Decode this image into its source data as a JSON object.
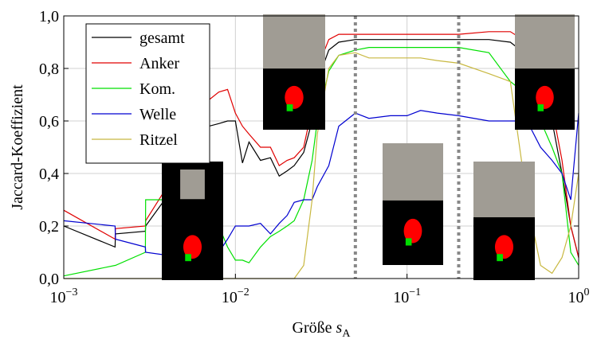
{
  "chart_data": {
    "type": "line",
    "x_label": {
      "text": "Größe ",
      "symbol": "s",
      "subscript": "A"
    },
    "y_label": "Jaccard-Koeffizient",
    "log_x": true,
    "grid": true,
    "legend_position": "upper left",
    "xlim": [
      0.001,
      1
    ],
    "ylim": [
      0,
      1
    ],
    "xticks": [
      {
        "value": 0.001,
        "label": "10",
        "exponent": "−3"
      },
      {
        "value": 0.01,
        "label": "10",
        "exponent": "−2"
      },
      {
        "value": 0.1,
        "label": "10",
        "exponent": "−1"
      },
      {
        "value": 1,
        "label": "10",
        "exponent": "0"
      }
    ],
    "yticks": [
      {
        "value": 0,
        "label": "0,0"
      },
      {
        "value": 0.2,
        "label": "0,2"
      },
      {
        "value": 0.4,
        "label": "0,4"
      },
      {
        "value": 0.6,
        "label": "0,6"
      },
      {
        "value": 0.8,
        "label": "0,8"
      },
      {
        "value": 1,
        "label": "1,0"
      }
    ],
    "vlines": [
      0.05,
      0.2
    ],
    "x": [
      0.001,
      0.00199,
      0.002,
      0.00299,
      0.003,
      0.005,
      0.007,
      0.008,
      0.009,
      0.01,
      0.011,
      0.012,
      0.014,
      0.016,
      0.018,
      0.02,
      0.022,
      0.025,
      0.028,
      0.03,
      0.035,
      0.04,
      0.05,
      0.06,
      0.08,
      0.1,
      0.12,
      0.15,
      0.2,
      0.3,
      0.4,
      0.5,
      0.6,
      0.7,
      0.8,
      0.9,
      1.0
    ],
    "series": [
      {
        "name": "gesamt",
        "color": "#000000",
        "values": [
          0.2,
          0.12,
          0.17,
          0.18,
          0.2,
          0.4,
          0.58,
          0.59,
          0.6,
          0.6,
          0.44,
          0.52,
          0.45,
          0.46,
          0.39,
          0.41,
          0.43,
          0.48,
          0.6,
          0.75,
          0.87,
          0.9,
          0.91,
          0.91,
          0.91,
          0.91,
          0.91,
          0.91,
          0.91,
          0.91,
          0.9,
          0.85,
          0.75,
          0.6,
          0.4,
          0.2,
          0.08
        ]
      },
      {
        "name": "Anker",
        "color": "#e00000",
        "values": [
          0.26,
          0.15,
          0.19,
          0.2,
          0.22,
          0.45,
          0.68,
          0.71,
          0.72,
          0.63,
          0.58,
          0.55,
          0.5,
          0.5,
          0.43,
          0.45,
          0.46,
          0.5,
          0.65,
          0.8,
          0.91,
          0.93,
          0.93,
          0.93,
          0.93,
          0.93,
          0.93,
          0.93,
          0.93,
          0.94,
          0.94,
          0.9,
          0.8,
          0.65,
          0.45,
          0.2,
          0.08
        ]
      },
      {
        "name": "Kom.",
        "color": "#00e000",
        "values": [
          0.01,
          0.05,
          0.05,
          0.1,
          0.3,
          0.3,
          0.25,
          0.2,
          0.12,
          0.07,
          0.07,
          0.06,
          0.12,
          0.16,
          0.18,
          0.2,
          0.22,
          0.3,
          0.45,
          0.6,
          0.79,
          0.85,
          0.87,
          0.88,
          0.88,
          0.88,
          0.88,
          0.88,
          0.88,
          0.86,
          0.75,
          0.7,
          0.6,
          0.5,
          0.4,
          0.1,
          0.05
        ]
      },
      {
        "name": "Welle",
        "color": "#0000d0",
        "values": [
          0.22,
          0.2,
          0.15,
          0.12,
          0.1,
          0.08,
          0.05,
          0.1,
          0.15,
          0.2,
          0.2,
          0.2,
          0.21,
          0.17,
          0.21,
          0.24,
          0.29,
          0.3,
          0.3,
          0.35,
          0.43,
          0.58,
          0.63,
          0.61,
          0.62,
          0.62,
          0.64,
          0.63,
          0.62,
          0.6,
          0.6,
          0.6,
          0.5,
          0.45,
          0.4,
          0.3,
          0.63
        ]
      },
      {
        "name": "Ritzel",
        "color": "#c8b840",
        "values": [
          0,
          0,
          0,
          0,
          0,
          0,
          0,
          0,
          0,
          0,
          0,
          0,
          0,
          0,
          0,
          0,
          0,
          0.05,
          0.3,
          0.55,
          0.8,
          0.85,
          0.86,
          0.84,
          0.84,
          0.84,
          0.84,
          0.83,
          0.82,
          0.78,
          0.75,
          0.3,
          0.05,
          0.02,
          0.08,
          0.2,
          0.4
        ]
      }
    ]
  }
}
